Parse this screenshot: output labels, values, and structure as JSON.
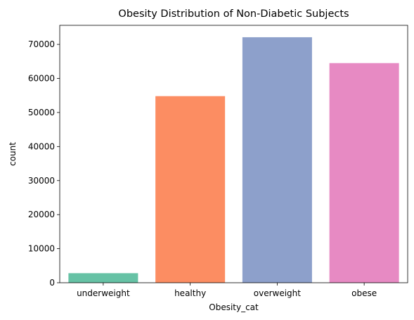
{
  "chart_data": {
    "type": "bar",
    "title": "Obesity Distribution of Non-Diabetic Subjects",
    "xlabel": "Obesity_cat",
    "ylabel": "count",
    "categories": [
      "underweight",
      "healthy",
      "overweight",
      "obese"
    ],
    "values": [
      2800,
      54800,
      72100,
      64500
    ],
    "colors": [
      "#66c2a5",
      "#fc8d62",
      "#8da0cb",
      "#e78ac3"
    ],
    "ylim": [
      0,
      75600
    ],
    "yticks": [
      0,
      10000,
      20000,
      30000,
      40000,
      50000,
      60000,
      70000
    ],
    "ytick_labels": [
      "0",
      "10000",
      "20000",
      "30000",
      "40000",
      "50000",
      "60000",
      "70000"
    ],
    "grid": false,
    "legend": "none"
  }
}
